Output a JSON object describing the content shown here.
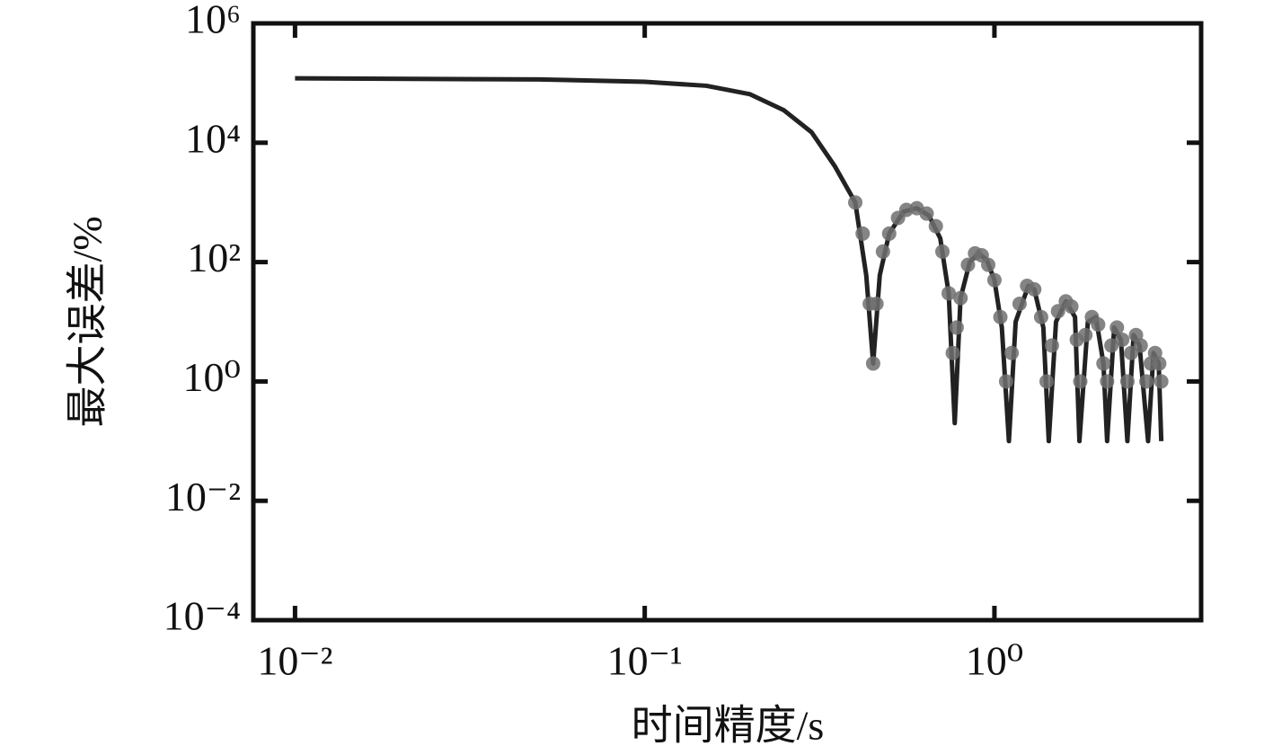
{
  "chart_data": {
    "type": "line",
    "xlabel": "时间精度/s",
    "ylabel": "最大误差/%",
    "xscale": "log",
    "yscale": "log",
    "xlim": [
      0.0076,
      3.9
    ],
    "ylim": [
      0.0001,
      1000000
    ],
    "xticks": [
      {
        "value": 0.01,
        "label": "10⁻²"
      },
      {
        "value": 0.1,
        "label": "10⁻¹"
      },
      {
        "value": 1,
        "label": "10⁰"
      }
    ],
    "yticks": [
      {
        "value": 0.0001,
        "label": "10⁻⁴"
      },
      {
        "value": 0.01,
        "label": "10⁻²"
      },
      {
        "value": 1,
        "label": "10⁰"
      },
      {
        "value": 100,
        "label": "10²"
      },
      {
        "value": 10000,
        "label": "10⁴"
      },
      {
        "value": 1000000,
        "label": "10⁶"
      }
    ],
    "series": [
      {
        "type": "line",
        "color": "#222222",
        "x": [
          0.01,
          0.05,
          0.1,
          0.15,
          0.2,
          0.25,
          0.3,
          0.35,
          0.4,
          0.43,
          0.45,
          0.47,
          0.5,
          0.55,
          0.6,
          0.65,
          0.7,
          0.74,
          0.77,
          0.8,
          0.85,
          0.9,
          0.95,
          1.0,
          1.05,
          1.1,
          1.15,
          1.25,
          1.3,
          1.38,
          1.43,
          1.5,
          1.6,
          1.7,
          1.75,
          1.85,
          1.95,
          2.05,
          2.1,
          2.2,
          2.3,
          2.4,
          2.5,
          2.6,
          2.75,
          2.85,
          2.95,
          3.0
        ],
        "values": [
          120000,
          115000,
          105000,
          90000,
          65000,
          35000,
          15000,
          4000,
          1000,
          60,
          2,
          60,
          300,
          700,
          800,
          600,
          250,
          30,
          0.2,
          25,
          100,
          140,
          110,
          50,
          8,
          0.1,
          10,
          40,
          35,
          8,
          0.1,
          10,
          22,
          12,
          0.1,
          10,
          12,
          2,
          0.1,
          8,
          5,
          0.1,
          6,
          4,
          0.1,
          3,
          2,
          0.1
        ]
      },
      {
        "type": "scatter",
        "color": "#6e6e6e",
        "x": [
          0.4,
          0.42,
          0.44,
          0.45,
          0.46,
          0.48,
          0.5,
          0.53,
          0.56,
          0.6,
          0.64,
          0.68,
          0.71,
          0.74,
          0.76,
          0.78,
          0.8,
          0.84,
          0.88,
          0.92,
          0.96,
          1.0,
          1.04,
          1.08,
          1.12,
          1.18,
          1.24,
          1.3,
          1.36,
          1.41,
          1.46,
          1.52,
          1.6,
          1.66,
          1.72,
          1.76,
          1.82,
          1.9,
          1.98,
          2.05,
          2.1,
          2.16,
          2.24,
          2.32,
          2.4,
          2.46,
          2.54,
          2.62,
          2.72,
          2.8,
          2.88,
          2.96,
          3.0
        ],
        "values": [
          1000,
          300,
          20,
          2,
          20,
          150,
          300,
          550,
          750,
          800,
          650,
          400,
          150,
          30,
          3,
          8,
          25,
          90,
          140,
          130,
          90,
          50,
          12,
          1,
          3,
          20,
          40,
          35,
          12,
          1,
          4,
          15,
          22,
          18,
          5,
          1,
          6,
          12,
          9,
          2,
          1,
          4,
          8,
          5,
          1,
          3,
          6,
          4,
          1,
          2,
          3,
          2,
          1
        ]
      }
    ]
  }
}
